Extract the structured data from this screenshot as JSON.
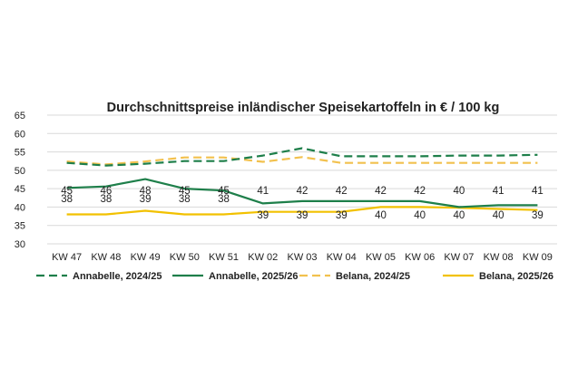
{
  "chart_data": {
    "type": "line",
    "title": "Durchschnittspreise inländischer Speisekartoffeln in € / 100 kg",
    "xlabel": "",
    "ylabel": "",
    "ylim": [
      30,
      65
    ],
    "yticks": [
      "65",
      "60",
      "55",
      "50",
      "45",
      "40",
      "35",
      "30"
    ],
    "grid": true,
    "legend_position": "bottom",
    "categories": [
      "KW 47",
      "KW 48",
      "KW 49",
      "KW 50",
      "KW 51",
      "KW 02",
      "KW 03",
      "KW 04",
      "KW 05",
      "KW 06",
      "KW 07",
      "KW 08",
      "KW 09"
    ],
    "series": [
      {
        "name": "Annabelle, 2024/25",
        "color": "#1e7f4a",
        "dash": true,
        "values": [
          52,
          51.3,
          51.8,
          52.5,
          52.5,
          54,
          56,
          53.8,
          53.8,
          53.8,
          54,
          54,
          54.2
        ]
      },
      {
        "name": "Annabelle, 2025/26",
        "color": "#1e7f4a",
        "dash": false,
        "values": [
          45.2,
          45.6,
          47.6,
          45,
          44.5,
          41,
          41.6,
          41.6,
          41.6,
          41.6,
          40,
          40.5,
          40.5
        ],
        "labels": [
          "45",
          "46",
          "48",
          "45",
          "45",
          "41",
          "42",
          "42",
          "42",
          "42",
          "40",
          "41",
          "41"
        ]
      },
      {
        "name": "Belana, 2024/25",
        "color": "#f2c14e",
        "dash": true,
        "values": [
          52.4,
          51.6,
          52.4,
          53.5,
          53.5,
          52.3,
          53.6,
          52,
          52,
          52,
          52,
          52,
          52
        ]
      },
      {
        "name": "Belana, 2025/26",
        "color": "#f2c100",
        "dash": false,
        "values": [
          38,
          38,
          39,
          38,
          38,
          38.7,
          38.7,
          38.7,
          40,
          40,
          39.8,
          39.5,
          39.2
        ],
        "labels": [
          "38",
          "38",
          "39",
          "38",
          "38",
          "39",
          "39",
          "39",
          "40",
          "40",
          "40",
          "40",
          "39"
        ]
      }
    ]
  }
}
